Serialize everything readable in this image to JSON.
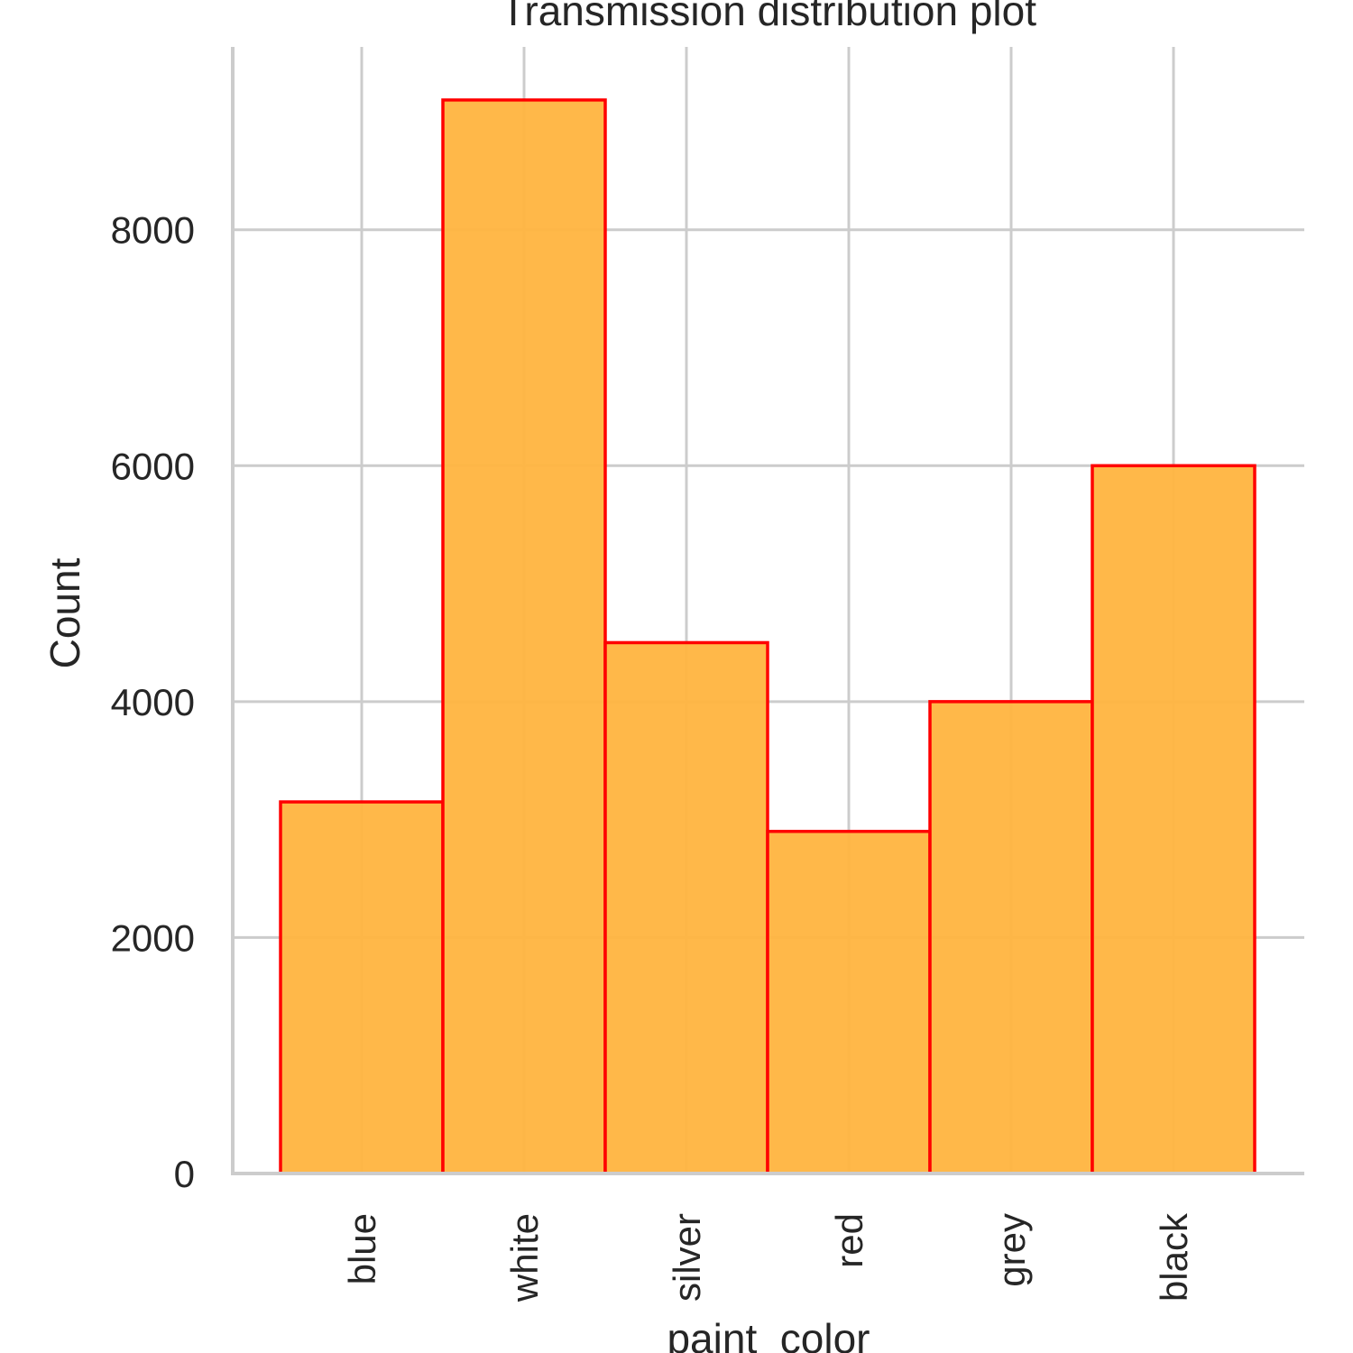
{
  "chart_data": {
    "type": "bar",
    "title": "Transmission distribution plot",
    "xlabel": "paint_color",
    "ylabel": "Count",
    "categories": [
      "blue",
      "white",
      "silver",
      "red",
      "grey",
      "black"
    ],
    "values": [
      3150,
      9100,
      4500,
      2900,
      4000,
      6000
    ],
    "yticks": [
      0,
      2000,
      4000,
      6000,
      8000
    ],
    "ylim": [
      0,
      9550
    ],
    "grid": true,
    "colors": {
      "bar_fill": "#FFB43F",
      "bar_edge": "#FF0000",
      "grid": "#CCCCCC",
      "text": "#262626"
    }
  }
}
